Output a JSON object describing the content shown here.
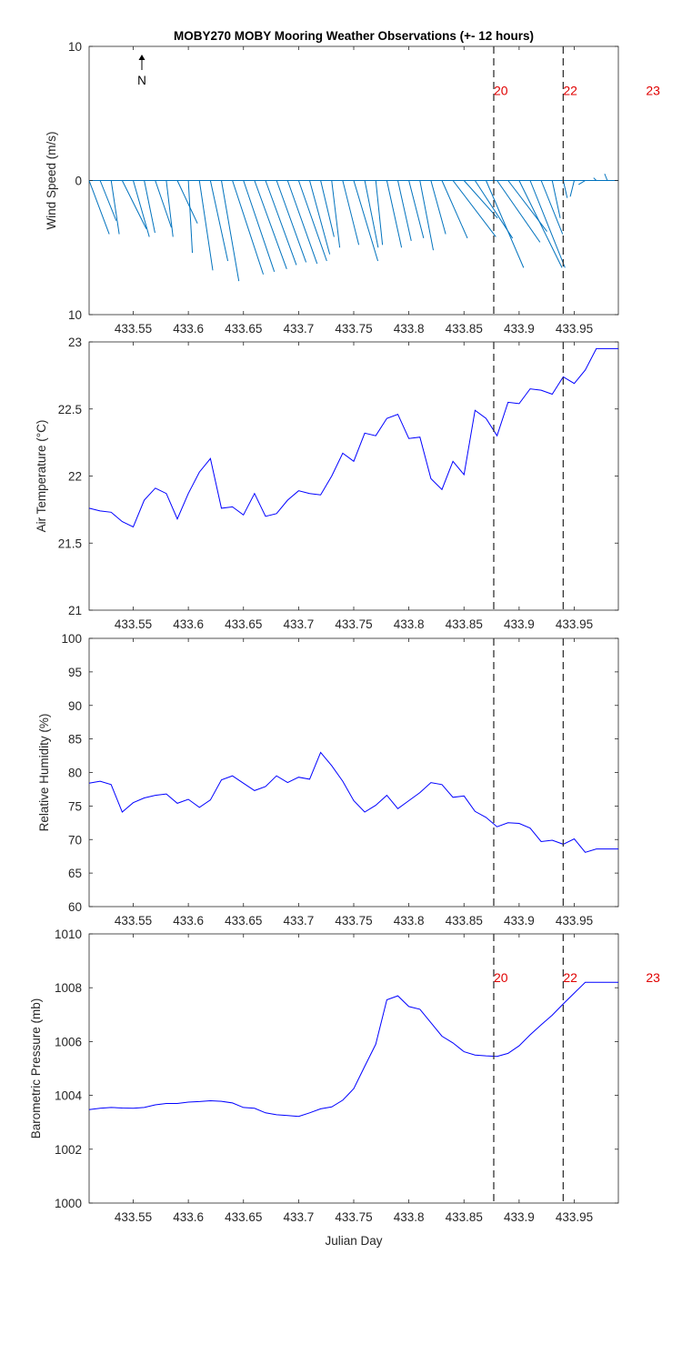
{
  "title": "MOBY270 MOBY Mooring Weather Observations (+- 12 hours)",
  "xlabel": "Julian Day",
  "north_label": "N",
  "colors": {
    "line": "#0000ff",
    "wind": "#0072bd",
    "marker": "#e00000",
    "axis": "#262626",
    "dash": "#333333"
  },
  "x_ticks": [
    433.55,
    433.6,
    433.65,
    433.7,
    433.75,
    433.8,
    433.85,
    433.9,
    433.95
  ],
  "x_tick_labels": [
    "433.55",
    "433.6",
    "433.65",
    "433.7",
    "433.75",
    "433.8",
    "433.85",
    "433.9",
    "433.95"
  ],
  "xlim": [
    433.51,
    433.99
  ],
  "vertical_markers": [
    {
      "x": 433.877,
      "label": "20",
      "dashed": true
    },
    {
      "x": 433.94,
      "label": "22",
      "dashed": true
    },
    {
      "x": 434.015,
      "label": "23",
      "dashed": false
    }
  ],
  "chart_data": [
    {
      "type": "quiver",
      "ylabel": "Wind Speed (m/s)",
      "ylim": [
        -10,
        10
      ],
      "y_tick_labels": [
        "10",
        "0",
        "10"
      ],
      "marker_labels": true,
      "x": [
        433.51,
        433.52,
        433.53,
        433.54,
        433.55,
        433.56,
        433.57,
        433.58,
        433.59,
        433.6,
        433.61,
        433.62,
        433.63,
        433.64,
        433.65,
        433.66,
        433.67,
        433.68,
        433.69,
        433.7,
        433.71,
        433.72,
        433.73,
        433.74,
        433.75,
        433.76,
        433.77,
        433.78,
        433.79,
        433.8,
        433.81,
        433.82,
        433.83,
        433.84,
        433.85,
        433.86,
        433.87,
        433.88,
        433.89,
        433.9,
        433.91,
        433.92,
        433.93,
        433.94,
        433.95,
        433.96,
        433.97,
        433.98,
        433.99
      ],
      "u": [
        1.5,
        1.2,
        0.6,
        1.8,
        1.2,
        0.8,
        1.2,
        0.5,
        1.5,
        0.3,
        1.0,
        1.3,
        1.3,
        2.3,
        2.3,
        2.4,
        2.3,
        2.2,
        2.2,
        2.1,
        1.5,
        1.0,
        0.6,
        1.2,
        1.8,
        1.0,
        0.5,
        1.1,
        1.0,
        1.1,
        1.0,
        1.1,
        1.9,
        3.2,
        2.5,
        2.8,
        2.8,
        3.2,
        2.9,
        3.2,
        2.6,
        1.6,
        0.6,
        0.3,
        -0.3,
        -0.5,
        -0.2,
        -0.2,
        -0.1
      ],
      "v": [
        -4.0,
        -3.0,
        -4.0,
        -3.6,
        -4.2,
        -3.9,
        -3.5,
        -4.2,
        -3.2,
        -5.4,
        -6.7,
        -6.0,
        -7.5,
        -7.0,
        -6.8,
        -6.6,
        -6.3,
        -6.1,
        -6.2,
        -6.0,
        -5.5,
        -4.2,
        -5.0,
        -4.8,
        -6.0,
        -5.0,
        -4.8,
        -5.0,
        -4.5,
        -4.3,
        -5.2,
        -4.0,
        -4.3,
        -4.2,
        -2.8,
        -4.3,
        -6.5,
        -4.6,
        -3.8,
        -6.5,
        -6.5,
        -4.0,
        -2.8,
        -1.3,
        -1.2,
        -0.3,
        0.2,
        0.5,
        0.0
      ]
    },
    {
      "type": "line",
      "ylabel": "Air Temperature (°C)",
      "ylim": [
        21,
        23
      ],
      "y_ticks": [
        21,
        21.5,
        22,
        22.5,
        23
      ],
      "y_tick_labels": [
        "21",
        "21.5",
        "22",
        "22.5",
        "23"
      ],
      "x": [
        433.51,
        433.52,
        433.53,
        433.54,
        433.55,
        433.56,
        433.57,
        433.58,
        433.59,
        433.6,
        433.61,
        433.62,
        433.63,
        433.64,
        433.65,
        433.66,
        433.67,
        433.68,
        433.69,
        433.7,
        433.71,
        433.72,
        433.73,
        433.74,
        433.75,
        433.76,
        433.77,
        433.78,
        433.79,
        433.8,
        433.81,
        433.82,
        433.83,
        433.84,
        433.85,
        433.86,
        433.87,
        433.88,
        433.89,
        433.9,
        433.91,
        433.92,
        433.93,
        433.94,
        433.95,
        433.96,
        433.97,
        433.98,
        433.99
      ],
      "y": [
        21.76,
        21.74,
        21.73,
        21.66,
        21.62,
        21.82,
        21.91,
        21.87,
        21.68,
        21.87,
        22.03,
        22.13,
        21.76,
        21.77,
        21.71,
        21.87,
        21.7,
        21.72,
        21.82,
        21.89,
        21.87,
        21.86,
        22.0,
        22.17,
        22.11,
        22.32,
        22.3,
        22.43,
        22.46,
        22.28,
        22.29,
        21.98,
        21.9,
        22.11,
        22.01,
        22.49,
        22.43,
        22.3,
        22.55,
        22.54,
        22.65,
        22.64,
        22.61,
        22.74,
        22.69,
        22.79,
        22.95,
        22.95,
        22.95
      ]
    },
    {
      "type": "line",
      "ylabel": "Relative Humidity (%)",
      "ylim": [
        60,
        100
      ],
      "y_ticks": [
        60,
        65,
        70,
        75,
        80,
        85,
        90,
        95,
        100
      ],
      "y_tick_labels": [
        "60",
        "65",
        "70",
        "75",
        "80",
        "85",
        "90",
        "95",
        "100"
      ],
      "x": [
        433.51,
        433.52,
        433.53,
        433.54,
        433.55,
        433.56,
        433.57,
        433.58,
        433.59,
        433.6,
        433.61,
        433.62,
        433.63,
        433.64,
        433.65,
        433.66,
        433.67,
        433.68,
        433.69,
        433.7,
        433.71,
        433.72,
        433.73,
        433.74,
        433.75,
        433.76,
        433.77,
        433.78,
        433.79,
        433.8,
        433.81,
        433.82,
        433.83,
        433.84,
        433.85,
        433.86,
        433.87,
        433.88,
        433.89,
        433.9,
        433.91,
        433.92,
        433.93,
        433.94,
        433.95,
        433.96,
        433.97,
        433.98,
        433.99
      ],
      "y": [
        78.4,
        78.7,
        78.2,
        74.1,
        75.5,
        76.2,
        76.6,
        76.8,
        75.4,
        76.0,
        74.8,
        75.9,
        78.9,
        79.5,
        78.4,
        77.3,
        77.9,
        79.5,
        78.5,
        79.3,
        79.0,
        83.0,
        81.0,
        78.7,
        75.8,
        74.1,
        75.1,
        76.6,
        74.6,
        75.8,
        77.0,
        78.5,
        78.2,
        76.3,
        76.5,
        74.2,
        73.3,
        71.9,
        72.5,
        72.4,
        71.7,
        69.7,
        69.9,
        69.3,
        70.1,
        68.1,
        68.6,
        68.6,
        68.6
      ]
    },
    {
      "type": "line",
      "ylabel": "Barometric Pressure (mb)",
      "xlabel": "Julian Day",
      "ylim": [
        1000,
        1010
      ],
      "y_ticks": [
        1000,
        1002,
        1004,
        1006,
        1008,
        1010
      ],
      "y_tick_labels": [
        "1000",
        "1002",
        "1004",
        "1006",
        "1008",
        "1010"
      ],
      "marker_labels": true,
      "x": [
        433.51,
        433.52,
        433.53,
        433.54,
        433.55,
        433.56,
        433.57,
        433.58,
        433.59,
        433.6,
        433.61,
        433.62,
        433.63,
        433.64,
        433.65,
        433.66,
        433.67,
        433.68,
        433.69,
        433.7,
        433.71,
        433.72,
        433.73,
        433.74,
        433.75,
        433.76,
        433.77,
        433.78,
        433.79,
        433.8,
        433.81,
        433.82,
        433.83,
        433.84,
        433.85,
        433.86,
        433.87,
        433.88,
        433.89,
        433.9,
        433.91,
        433.92,
        433.93,
        433.94,
        433.95,
        433.96,
        433.97,
        433.98,
        433.99
      ],
      "y": [
        1003.47,
        1003.52,
        1003.55,
        1003.53,
        1003.52,
        1003.55,
        1003.65,
        1003.7,
        1003.7,
        1003.75,
        1003.77,
        1003.8,
        1003.78,
        1003.72,
        1003.55,
        1003.52,
        1003.35,
        1003.28,
        1003.25,
        1003.22,
        1003.35,
        1003.5,
        1003.57,
        1003.82,
        1004.25,
        1005.08,
        1005.9,
        1007.55,
        1007.7,
        1007.3,
        1007.2,
        1006.7,
        1006.2,
        1005.95,
        1005.62,
        1005.5,
        1005.47,
        1005.45,
        1005.56,
        1005.84,
        1006.25,
        1006.62,
        1006.98,
        1007.4,
        1007.8,
        1008.2,
        1008.2,
        1008.2,
        1008.2
      ]
    }
  ]
}
